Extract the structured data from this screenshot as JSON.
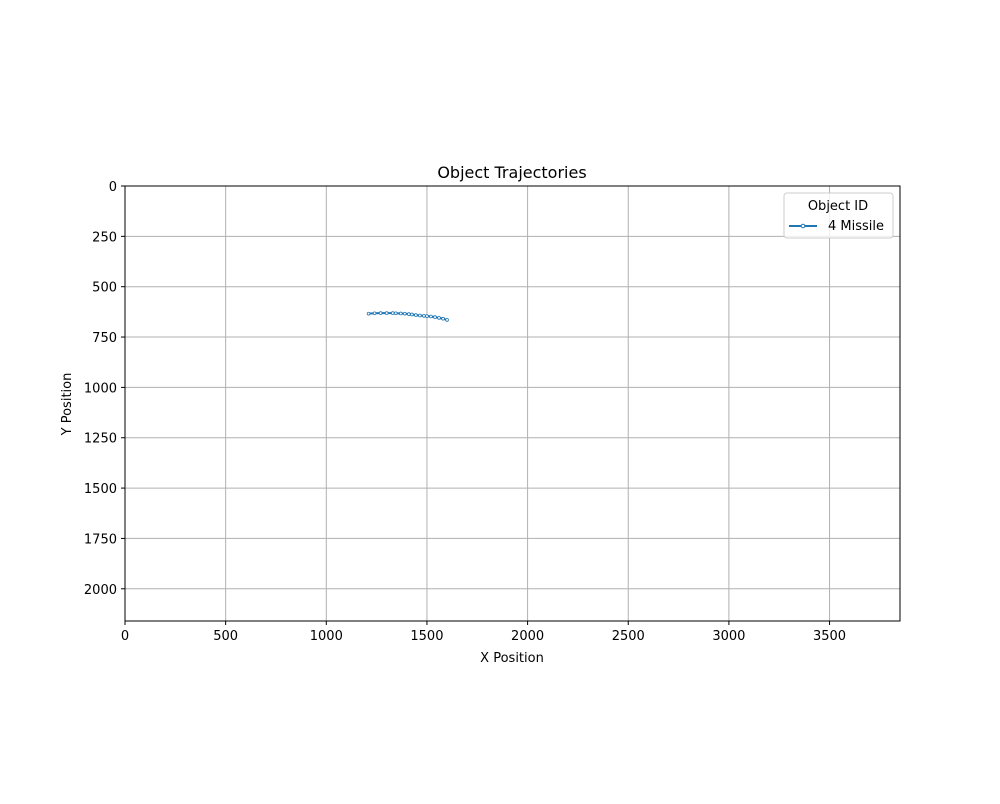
{
  "chart_data": {
    "type": "line",
    "title": "Object Trajectories",
    "xlabel": "X Position",
    "ylabel": "Y Position",
    "xlim": [
      0,
      3850
    ],
    "ylim": [
      2160,
      0
    ],
    "y_inverted": true,
    "x_ticks": [
      0,
      500,
      1000,
      1500,
      2000,
      2500,
      3000,
      3500
    ],
    "y_ticks": [
      0,
      250,
      500,
      750,
      1000,
      1250,
      1500,
      1750,
      2000
    ],
    "grid": true,
    "legend": {
      "title": "Object ID",
      "position": "top-right"
    },
    "series": [
      {
        "name": "4 Missile",
        "color": "#1f77b4",
        "marker": "point",
        "points": [
          [
            1210,
            634
          ],
          [
            1240,
            632
          ],
          [
            1270,
            631
          ],
          [
            1300,
            631
          ],
          [
            1330,
            631
          ],
          [
            1345,
            632
          ],
          [
            1370,
            633
          ],
          [
            1390,
            634
          ],
          [
            1410,
            636
          ],
          [
            1425,
            638
          ],
          [
            1445,
            641
          ],
          [
            1465,
            643
          ],
          [
            1485,
            645
          ],
          [
            1500,
            646
          ],
          [
            1520,
            648
          ],
          [
            1540,
            651
          ],
          [
            1560,
            655
          ],
          [
            1580,
            659
          ],
          [
            1600,
            665
          ]
        ]
      }
    ]
  }
}
